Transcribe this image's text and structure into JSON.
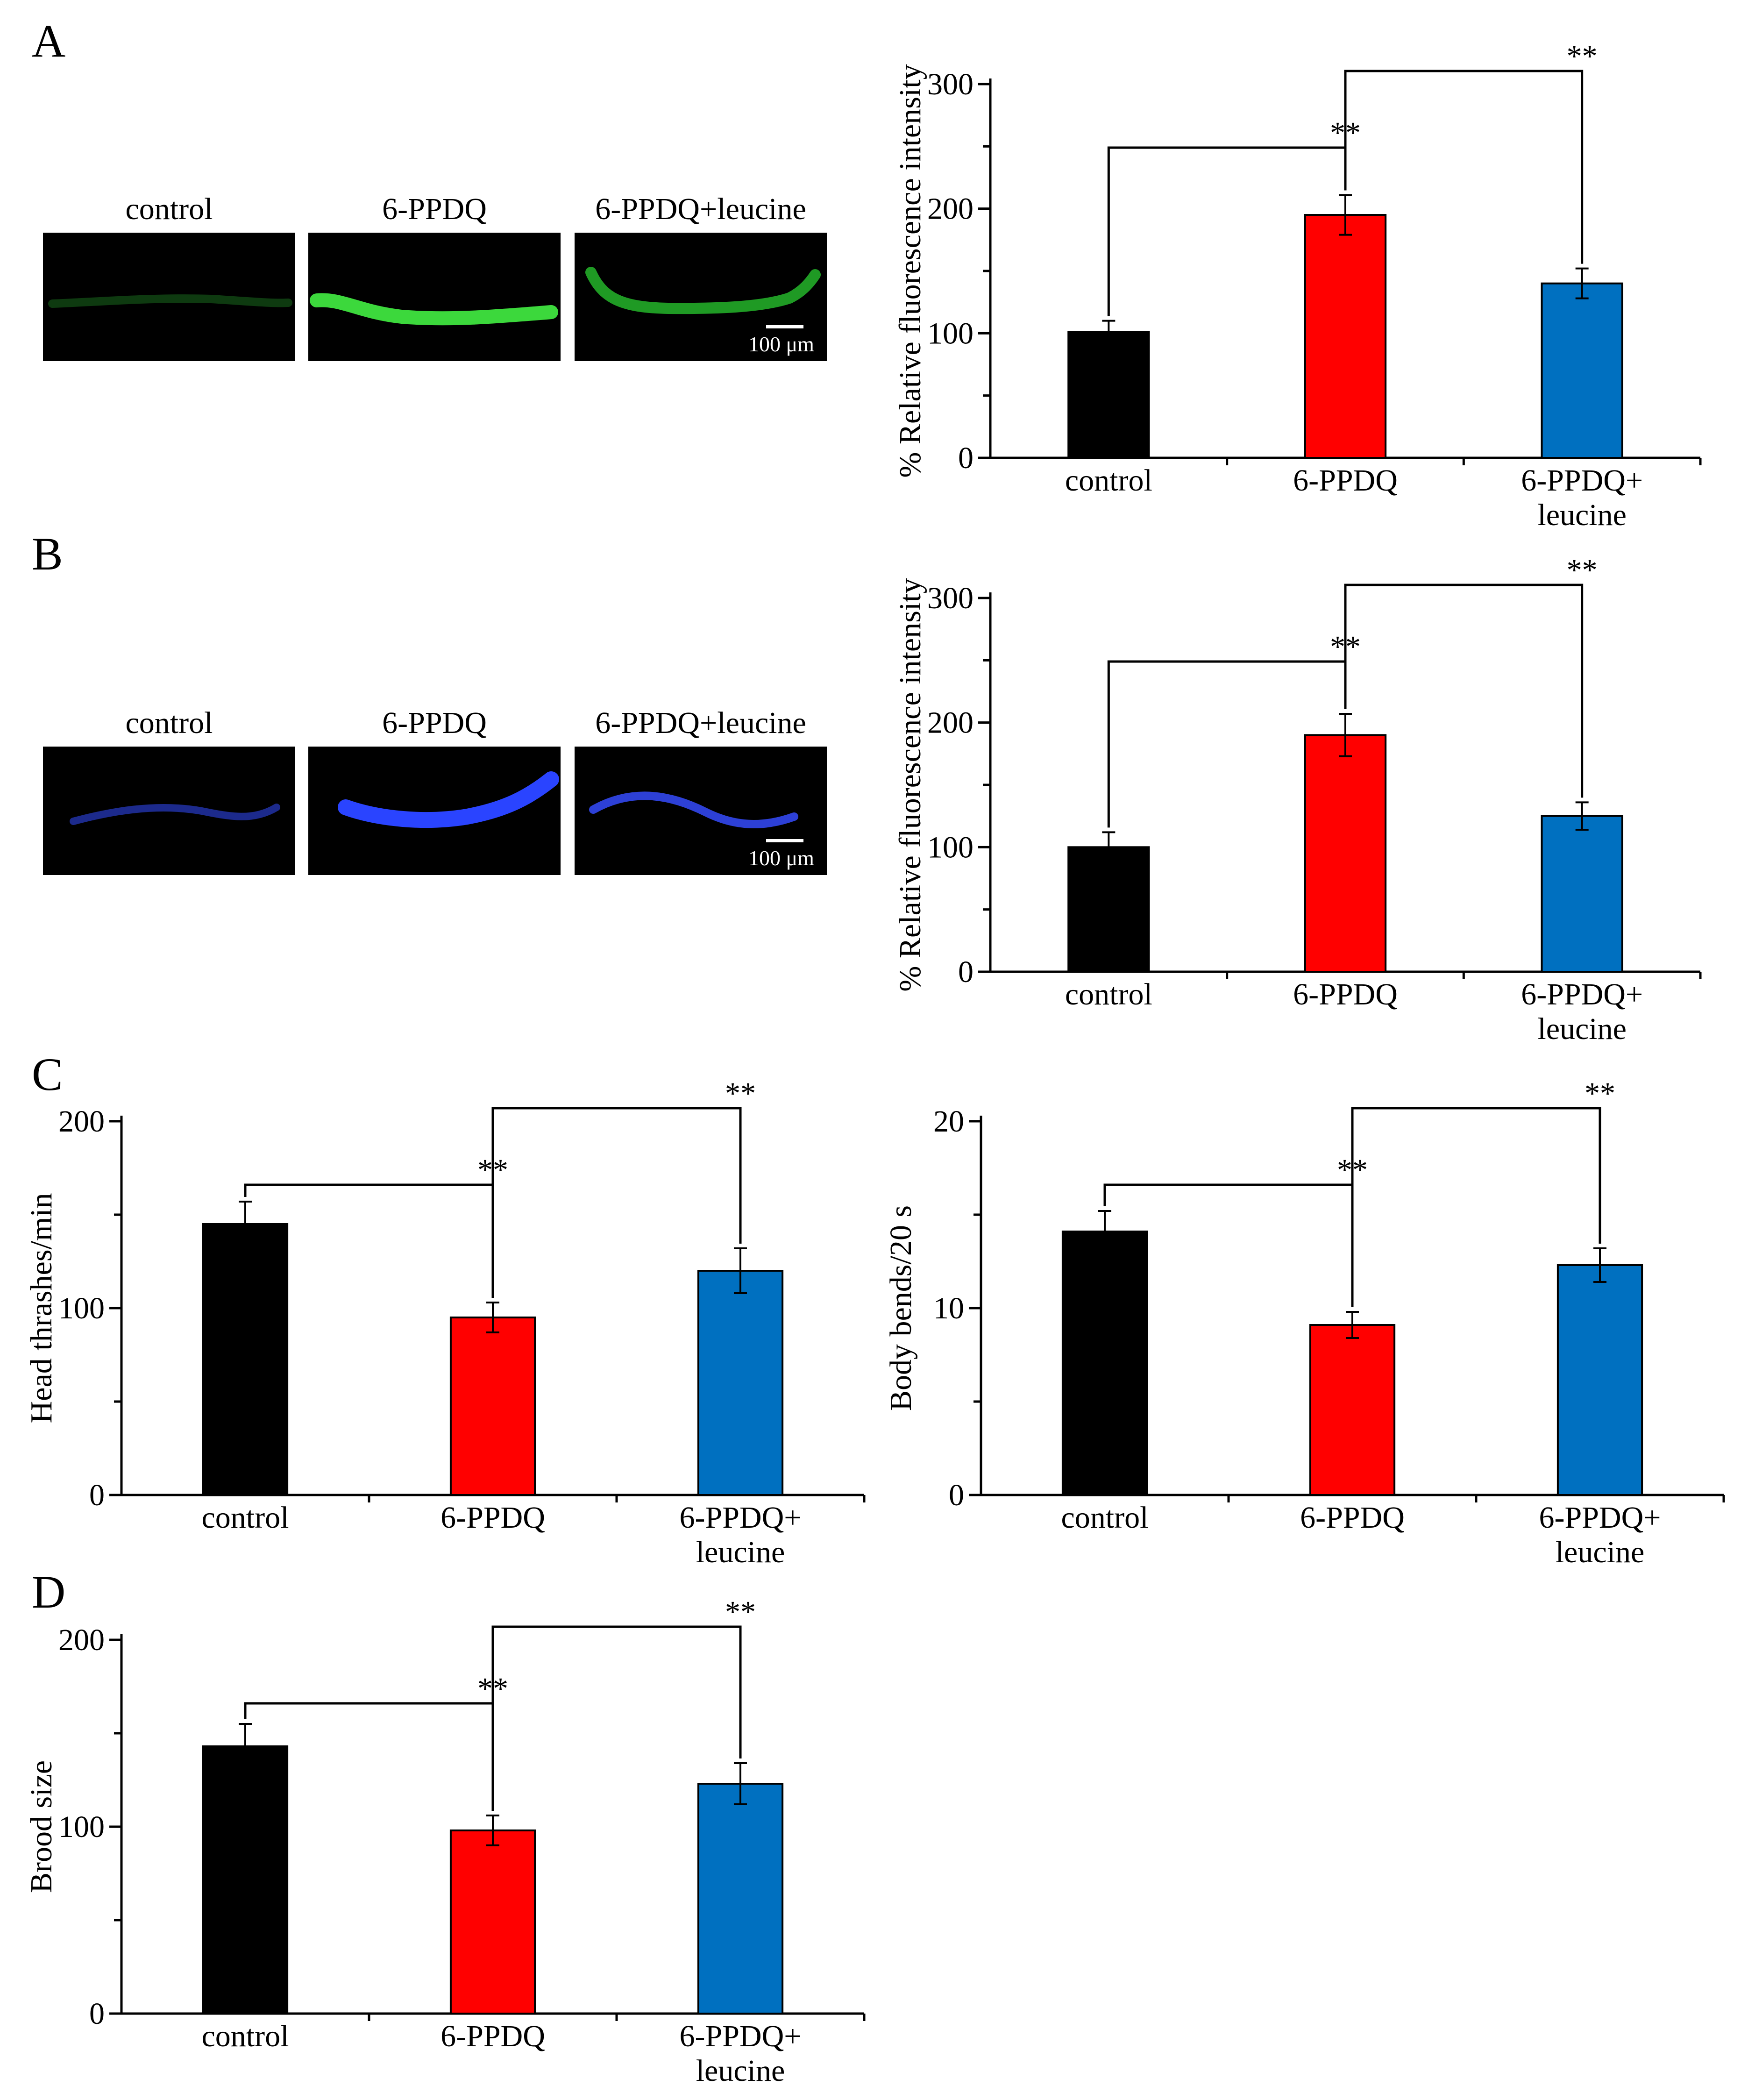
{
  "panels": {
    "A": {
      "letter": "A"
    },
    "B": {
      "letter": "B"
    },
    "C": {
      "letter": "C"
    },
    "D": {
      "letter": "D"
    }
  },
  "micrographs": {
    "A": {
      "labels": [
        "control",
        "6-PPDQ",
        "6-PPDQ+leucine"
      ],
      "scale_text": "100 μm",
      "colors": {
        "control": "#0e3a10",
        "ppdq": "#3cd83c",
        "leucine": "#1f9a24"
      },
      "fluorescence": "green"
    },
    "B": {
      "labels": [
        "control",
        "6-PPDQ",
        "6-PPDQ+leucine"
      ],
      "scale_text": "100 μm",
      "colors": {
        "control": "#1c2a8c",
        "ppdq": "#2a44ff",
        "leucine": "#2d40d6"
      },
      "fluorescence": "blue"
    }
  },
  "chart_data": [
    {
      "id": "A",
      "type": "bar",
      "categories": [
        "control",
        "6-PPDQ",
        "6-PPDQ+\nleucine"
      ],
      "values": [
        101,
        195,
        140
      ],
      "errors": [
        9,
        16,
        12
      ],
      "colors": [
        "#000000",
        "#ff0000",
        "#0070c0"
      ],
      "ylabel": "% Relative fluorescence intensity",
      "ylim": [
        0,
        300
      ],
      "yticks": [
        0,
        100,
        200,
        300
      ],
      "significance": [
        {
          "from": 0,
          "to": 1,
          "label": "**"
        },
        {
          "from": 1,
          "to": 2,
          "label": "**"
        }
      ]
    },
    {
      "id": "B",
      "type": "bar",
      "categories": [
        "control",
        "6-PPDQ",
        "6-PPDQ+\nleucine"
      ],
      "values": [
        100,
        190,
        125
      ],
      "errors": [
        12,
        17,
        11
      ],
      "colors": [
        "#000000",
        "#ff0000",
        "#0070c0"
      ],
      "ylabel": "% Relative fluorescence intensity",
      "ylim": [
        0,
        300
      ],
      "yticks": [
        0,
        100,
        200,
        300
      ],
      "significance": [
        {
          "from": 0,
          "to": 1,
          "label": "**"
        },
        {
          "from": 1,
          "to": 2,
          "label": "**"
        }
      ]
    },
    {
      "id": "C1",
      "type": "bar",
      "categories": [
        "control",
        "6-PPDQ",
        "6-PPDQ+\nleucine"
      ],
      "values": [
        145,
        95,
        120
      ],
      "errors": [
        12,
        8,
        12
      ],
      "colors": [
        "#000000",
        "#ff0000",
        "#0070c0"
      ],
      "ylabel": "Head thrashes/min",
      "ylim": [
        0,
        200
      ],
      "yticks": [
        0,
        100,
        200
      ],
      "significance": [
        {
          "from": 0,
          "to": 1,
          "label": "**"
        },
        {
          "from": 1,
          "to": 2,
          "label": "**"
        }
      ]
    },
    {
      "id": "C2",
      "type": "bar",
      "categories": [
        "control",
        "6-PPDQ",
        "6-PPDQ+\nleucine"
      ],
      "values": [
        14.1,
        9.1,
        12.3
      ],
      "errors": [
        1.1,
        0.7,
        0.9
      ],
      "colors": [
        "#000000",
        "#ff0000",
        "#0070c0"
      ],
      "ylabel": "Body bends/20 s",
      "ylim": [
        0,
        20
      ],
      "yticks": [
        0,
        10,
        20
      ],
      "significance": [
        {
          "from": 0,
          "to": 1,
          "label": "**"
        },
        {
          "from": 1,
          "to": 2,
          "label": "**"
        }
      ]
    },
    {
      "id": "D",
      "type": "bar",
      "categories": [
        "control",
        "6-PPDQ",
        "6-PPDQ+\nleucine"
      ],
      "values": [
        143,
        98,
        123
      ],
      "errors": [
        12,
        8,
        11
      ],
      "colors": [
        "#000000",
        "#ff0000",
        "#0070c0"
      ],
      "ylabel": "Brood size",
      "ylim": [
        0,
        200
      ],
      "yticks": [
        0,
        100,
        200
      ],
      "significance": [
        {
          "from": 0,
          "to": 1,
          "label": "**"
        },
        {
          "from": 1,
          "to": 2,
          "label": "**"
        }
      ]
    }
  ]
}
